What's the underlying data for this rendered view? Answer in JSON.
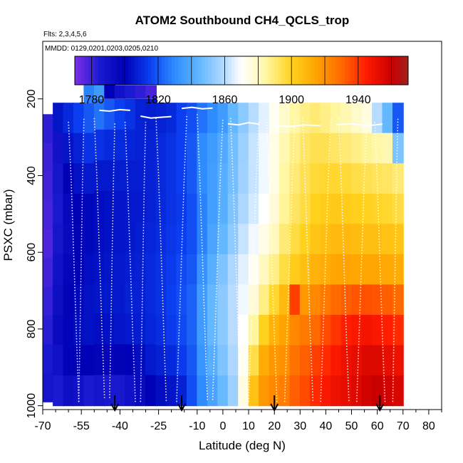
{
  "chart_data": {
    "type": "heatmap",
    "title": "ATOM2 Southbound CH4_QCLS_trop",
    "flights_label": "Flts: 2,3,4,5,6",
    "dates_label": "MMDD: 0129,0201,0203,0205,0210",
    "xlabel": "Latitude (deg N)",
    "ylabel": "PSXC (mbar)",
    "xlim": [
      -70,
      85
    ],
    "ylim": [
      1010,
      50
    ],
    "x_ticks": [
      -70,
      -55,
      -40,
      -25,
      -10,
      0,
      10,
      20,
      30,
      40,
      50,
      60,
      70,
      80
    ],
    "x_minor_ticks": [
      -65,
      -60,
      -50,
      -45,
      -35,
      -30,
      -20,
      -15,
      -5,
      5,
      15,
      25,
      35,
      45,
      55,
      65,
      75,
      85
    ],
    "y_ticks": [
      200,
      400,
      600,
      800,
      1000
    ],
    "colorbar": {
      "vmin": 1770,
      "vmax": 1970,
      "tick_labels": [
        1780,
        1820,
        1860,
        1900,
        1940
      ],
      "stops": [
        {
          "v": 1770,
          "c": "#7b2fe8"
        },
        {
          "v": 1785,
          "c": "#1a1ad0"
        },
        {
          "v": 1800,
          "c": "#0000b4"
        },
        {
          "v": 1815,
          "c": "#0b3ef0"
        },
        {
          "v": 1830,
          "c": "#2f8cff"
        },
        {
          "v": 1845,
          "c": "#63b8ff"
        },
        {
          "v": 1860,
          "c": "#b8dcff"
        },
        {
          "v": 1870,
          "c": "#ffffff"
        },
        {
          "v": 1885,
          "c": "#fff6a0"
        },
        {
          "v": 1900,
          "c": "#ffd21e"
        },
        {
          "v": 1915,
          "c": "#ffa300"
        },
        {
          "v": 1930,
          "c": "#ff6a00"
        },
        {
          "v": 1945,
          "c": "#ff1a00"
        },
        {
          "v": 1960,
          "c": "#c90000"
        },
        {
          "v": 1970,
          "c": "#a02020"
        }
      ]
    },
    "lat_columns": [
      {
        "lat": -68,
        "top": 240,
        "bot": 990,
        "vals": [
          1782,
          1780,
          1779,
          1778,
          1777,
          1779,
          1781,
          1783,
          1786,
          1788
        ]
      },
      {
        "lat": -64,
        "top": 210,
        "bot": 1000,
        "vals": [
          1805,
          1790,
          1788,
          1786,
          1788,
          1790,
          1792,
          1794,
          1790,
          1785
        ]
      },
      {
        "lat": -60,
        "top": 210,
        "bot": 1000,
        "vals": [
          1810,
          1805,
          1800,
          1796,
          1795,
          1797,
          1799,
          1801,
          1798,
          1792
        ]
      },
      {
        "lat": -56,
        "top": 210,
        "bot": 1000,
        "vals": [
          1815,
          1808,
          1804,
          1800,
          1799,
          1800,
          1802,
          1803,
          1800,
          1790
        ]
      },
      {
        "lat": -52,
        "top": 210,
        "bot": 1000,
        "vals": [
          1820,
          1812,
          1806,
          1802,
          1802,
          1803,
          1804,
          1804,
          1800,
          1785
        ]
      },
      {
        "lat": -48,
        "top": 200,
        "bot": 1000,
        "vals": [
          1825,
          1812,
          1806,
          1803,
          1803,
          1804,
          1805,
          1803,
          1798,
          1788
        ]
      },
      {
        "lat": -44,
        "top": 200,
        "bot": 1000,
        "vals": [
          1820,
          1810,
          1806,
          1804,
          1804,
          1805,
          1806,
          1804,
          1797,
          1786
        ]
      },
      {
        "lat": -40,
        "top": 200,
        "bot": 1000,
        "vals": [
          1815,
          1810,
          1807,
          1805,
          1805,
          1806,
          1806,
          1805,
          1799,
          1786
        ]
      },
      {
        "lat": -36,
        "top": 200,
        "bot": 1000,
        "vals": [
          1812,
          1809,
          1807,
          1806,
          1806,
          1807,
          1808,
          1806,
          1800,
          1790
        ]
      },
      {
        "lat": -32,
        "top": 200,
        "bot": 1000,
        "vals": [
          1808,
          1808,
          1807,
          1806,
          1807,
          1808,
          1808,
          1807,
          1803,
          1795
        ]
      },
      {
        "lat": -28,
        "top": 200,
        "bot": 1000,
        "vals": [
          1807,
          1808,
          1808,
          1808,
          1809,
          1810,
          1810,
          1809,
          1806,
          1800
        ]
      },
      {
        "lat": -24,
        "top": 210,
        "bot": 1000,
        "vals": [
          1808,
          1810,
          1810,
          1810,
          1811,
          1812,
          1812,
          1811,
          1808,
          1803
        ]
      },
      {
        "lat": -20,
        "top": 210,
        "bot": 1000,
        "vals": [
          1810,
          1812,
          1812,
          1812,
          1813,
          1814,
          1815,
          1814,
          1810,
          1805
        ]
      },
      {
        "lat": -16,
        "top": 210,
        "bot": 1000,
        "vals": [
          1815,
          1815,
          1815,
          1814,
          1815,
          1817,
          1818,
          1817,
          1814,
          1808
        ]
      },
      {
        "lat": -12,
        "top": 210,
        "bot": 1000,
        "vals": [
          1818,
          1820,
          1820,
          1818,
          1818,
          1820,
          1822,
          1822,
          1820,
          1818
        ]
      },
      {
        "lat": -8,
        "top": 210,
        "bot": 1000,
        "vals": [
          1825,
          1830,
          1830,
          1828,
          1828,
          1832,
          1835,
          1835,
          1833,
          1830
        ]
      },
      {
        "lat": -4,
        "top": 210,
        "bot": 1000,
        "vals": [
          1830,
          1835,
          1836,
          1836,
          1838,
          1842,
          1845,
          1845,
          1842,
          1838
        ]
      },
      {
        "lat": 0,
        "top": 210,
        "bot": 1000,
        "vals": [
          1835,
          1840,
          1842,
          1842,
          1845,
          1850,
          1852,
          1852,
          1850,
          1846
        ]
      },
      {
        "lat": 4,
        "top": 210,
        "bot": 1000,
        "vals": [
          1845,
          1848,
          1848,
          1850,
          1853,
          1858,
          1860,
          1860,
          1858,
          1855
        ]
      },
      {
        "lat": 8,
        "top": 210,
        "bot": 1000,
        "vals": [
          1852,
          1855,
          1856,
          1858,
          1862,
          1866,
          1868,
          1870,
          1872,
          1875
        ]
      },
      {
        "lat": 12,
        "top": 210,
        "bot": 1000,
        "vals": [
          1860,
          1862,
          1862,
          1864,
          1868,
          1872,
          1876,
          1885,
          1895,
          1905
        ]
      },
      {
        "lat": 16,
        "top": 210,
        "bot": 1000,
        "vals": [
          1866,
          1868,
          1868,
          1870,
          1874,
          1880,
          1888,
          1900,
          1912,
          1918
        ]
      },
      {
        "lat": 20,
        "top": 210,
        "bot": 1000,
        "vals": [
          1872,
          1874,
          1874,
          1876,
          1880,
          1888,
          1898,
          1910,
          1918,
          1922
        ]
      },
      {
        "lat": 24,
        "top": 210,
        "bot": 1000,
        "vals": [
          1878,
          1882,
          1884,
          1886,
          1890,
          1896,
          1908,
          1915,
          1920,
          1925
        ]
      },
      {
        "lat": 28,
        "top": 210,
        "bot": 1000,
        "vals": [
          1884,
          1888,
          1890,
          1892,
          1896,
          1902,
          1938,
          1922,
          1928,
          1932
        ]
      },
      {
        "lat": 32,
        "top": 210,
        "bot": 1000,
        "vals": [
          1888,
          1892,
          1894,
          1896,
          1900,
          1906,
          1918,
          1926,
          1932,
          1936
        ]
      },
      {
        "lat": 36,
        "top": 210,
        "bot": 1000,
        "vals": [
          1890,
          1894,
          1897,
          1900,
          1904,
          1910,
          1922,
          1930,
          1938,
          1942
        ]
      },
      {
        "lat": 40,
        "top": 210,
        "bot": 1000,
        "vals": [
          1888,
          1894,
          1898,
          1902,
          1906,
          1912,
          1926,
          1936,
          1942,
          1946
        ]
      },
      {
        "lat": 44,
        "top": 210,
        "bot": 1000,
        "vals": [
          1885,
          1892,
          1898,
          1903,
          1908,
          1914,
          1930,
          1940,
          1946,
          1950
        ]
      },
      {
        "lat": 48,
        "top": 210,
        "bot": 1000,
        "vals": [
          1882,
          1890,
          1897,
          1902,
          1908,
          1915,
          1932,
          1944,
          1950,
          1952
        ]
      },
      {
        "lat": 52,
        "top": 210,
        "bot": 1000,
        "vals": [
          1878,
          1888,
          1895,
          1901,
          1907,
          1914,
          1934,
          1946,
          1952,
          1955
        ]
      },
      {
        "lat": 56,
        "top": 210,
        "bot": 1000,
        "vals": [
          1875,
          1886,
          1894,
          1900,
          1906,
          1914,
          1935,
          1948,
          1955,
          1958
        ]
      },
      {
        "lat": 60,
        "top": 210,
        "bot": 1000,
        "vals": [
          1860,
          1884,
          1893,
          1899,
          1906,
          1914,
          1934,
          1946,
          1955,
          1960
        ]
      },
      {
        "lat": 64,
        "top": 210,
        "bot": 1000,
        "vals": [
          1845,
          1882,
          1892,
          1898,
          1905,
          1913,
          1932,
          1944,
          1952,
          1958
        ]
      },
      {
        "lat": 68,
        "top": 210,
        "bot": 1000,
        "vals": [
          1820,
          1850,
          1890,
          1896,
          1904,
          1912,
          1930,
          1942,
          1950,
          1956
        ]
      }
    ],
    "top_patch": [
      {
        "lat": -52,
        "top": 160,
        "bot": 210,
        "val": 1828
      },
      {
        "lat": -48,
        "top": 160,
        "bot": 200,
        "val": 1835
      },
      {
        "lat": -44,
        "top": 160,
        "bot": 200,
        "val": 1800
      },
      {
        "lat": -40,
        "top": 165,
        "bot": 200,
        "val": 1790
      },
      {
        "lat": -36,
        "top": 165,
        "bot": 200,
        "val": 1785
      },
      {
        "lat": -32,
        "top": 165,
        "bot": 200,
        "val": 1782
      },
      {
        "lat": -28,
        "top": 165,
        "bot": 200,
        "val": 1778
      }
    ],
    "flight_tracks": [
      {
        "lat": [
          -60,
          -59,
          -58,
          -57,
          -56
        ],
        "p": [
          260,
          400,
          600,
          800,
          990
        ]
      },
      {
        "lat": [
          -56,
          -55.5,
          -55,
          -54.5,
          -54
        ],
        "p": [
          990,
          800,
          600,
          400,
          250
        ]
      },
      {
        "lat": [
          -50,
          -49,
          -48,
          -47,
          -46
        ],
        "p": [
          250,
          400,
          600,
          800,
          980
        ]
      },
      {
        "lat": [
          -44,
          -43.5,
          -43,
          -42.5,
          -42
        ],
        "p": [
          980,
          800,
          600,
          400,
          260
        ]
      },
      {
        "lat": [
          -38,
          -37,
          -36,
          -35,
          -34
        ],
        "p": [
          260,
          420,
          620,
          820,
          990
        ]
      },
      {
        "lat": [
          -32,
          -31.5,
          -31,
          -30.5,
          -30
        ],
        "p": [
          990,
          800,
          600,
          400,
          260
        ]
      },
      {
        "lat": [
          -26,
          -25,
          -24,
          -23,
          -22
        ],
        "p": [
          250,
          400,
          600,
          800,
          990
        ]
      },
      {
        "lat": [
          -18,
          -17,
          -16,
          -15,
          -14
        ],
        "p": [
          990,
          800,
          600,
          400,
          240
        ]
      },
      {
        "lat": [
          -10,
          -9,
          -8,
          -7,
          -6
        ],
        "p": [
          240,
          400,
          600,
          800,
          985
        ]
      },
      {
        "lat": [
          -4,
          -3,
          -2,
          -1,
          0
        ],
        "p": [
          985,
          800,
          600,
          400,
          250
        ]
      },
      {
        "lat": [
          3,
          4,
          5,
          6,
          7
        ],
        "p": [
          250,
          420,
          620,
          820,
          990
        ]
      },
      {
        "lat": [
          10,
          11,
          12,
          13,
          14
        ],
        "p": [
          990,
          800,
          600,
          400,
          260
        ]
      },
      {
        "lat": [
          17,
          18,
          19,
          20,
          21
        ],
        "p": [
          260,
          420,
          620,
          820,
          990
        ]
      },
      {
        "lat": [
          24,
          25,
          26,
          27,
          28
        ],
        "p": [
          990,
          800,
          600,
          400,
          250
        ]
      },
      {
        "lat": [
          31,
          32,
          33,
          34,
          35
        ],
        "p": [
          250,
          420,
          620,
          820,
          990
        ]
      },
      {
        "lat": [
          38,
          39,
          40,
          41,
          42
        ],
        "p": [
          990,
          800,
          600,
          400,
          250
        ]
      },
      {
        "lat": [
          45,
          46,
          47,
          48,
          49
        ],
        "p": [
          250,
          420,
          620,
          820,
          990
        ]
      },
      {
        "lat": [
          52,
          53,
          54,
          55,
          56
        ],
        "p": [
          990,
          800,
          600,
          400,
          260
        ]
      },
      {
        "lat": [
          59,
          60,
          61,
          62,
          63
        ],
        "p": [
          260,
          420,
          620,
          820,
          990
        ]
      },
      {
        "lat": [
          66,
          66.5,
          67,
          67.5,
          68
        ],
        "p": [
          990,
          800,
          600,
          400,
          250
        ]
      }
    ],
    "high_tracks": [
      {
        "lat": [
          -48,
          -44,
          -40,
          -36
        ],
        "p": [
          230,
          232,
          228,
          230
        ]
      },
      {
        "lat": [
          -32,
          -28,
          -24,
          -20
        ],
        "p": [
          245,
          250,
          248,
          246
        ]
      },
      {
        "lat": [
          -16,
          -12,
          -8,
          -4
        ],
        "p": [
          225,
          222,
          226,
          224
        ]
      },
      {
        "lat": [
          2,
          6,
          10,
          14
        ],
        "p": [
          265,
          268,
          262,
          266
        ]
      },
      {
        "lat": [
          20,
          26,
          32,
          38
        ],
        "p": [
          270,
          272,
          268,
          270
        ]
      },
      {
        "lat": [
          44,
          50,
          56,
          62
        ],
        "p": [
          268,
          265,
          270,
          266
        ]
      }
    ],
    "arrows": [
      -42,
      -16,
      20,
      61
    ]
  }
}
